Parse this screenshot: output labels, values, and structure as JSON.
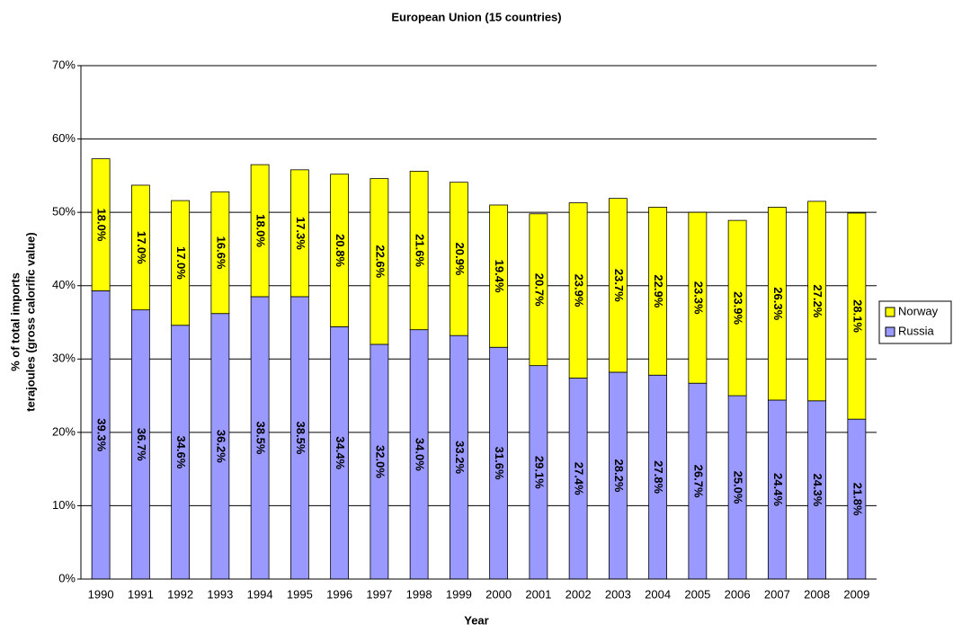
{
  "chart_data": {
    "type": "stacked_bar",
    "title": "European Union (15 countries)",
    "xlabel": "Year",
    "ylabel": [
      "% of total imports",
      "terajoules (gross calorific value)"
    ],
    "categories": [
      "1990",
      "1991",
      "1992",
      "1993",
      "1994",
      "1995",
      "1996",
      "1997",
      "1998",
      "1999",
      "2000",
      "2001",
      "2002",
      "2003",
      "2004",
      "2005",
      "2006",
      "2007",
      "2008",
      "2009"
    ],
    "series": [
      {
        "name": "Russia",
        "color": "#9999ff",
        "values": [
          39.3,
          36.7,
          34.6,
          36.2,
          38.5,
          38.5,
          34.4,
          32.0,
          34.0,
          33.2,
          31.6,
          29.1,
          27.4,
          28.2,
          27.8,
          26.7,
          25.0,
          24.4,
          24.3,
          21.8
        ],
        "value_labels": [
          "39.3%",
          "36.7%",
          "34.6%",
          "36.2%",
          "38.5%",
          "38.5%",
          "34.4%",
          "32.0%",
          "34.0%",
          "33.2%",
          "31.6%",
          "29.1%",
          "27.4%",
          "28.2%",
          "27.8%",
          "26.7%",
          "25.0%",
          "24.4%",
          "24.3%",
          "21.8%"
        ]
      },
      {
        "name": "Norway",
        "color": "#ffff00",
        "values": [
          18.0,
          17.0,
          17.0,
          16.6,
          18.0,
          17.3,
          20.8,
          22.6,
          21.6,
          20.9,
          19.4,
          20.7,
          23.9,
          23.7,
          22.9,
          23.3,
          23.9,
          26.3,
          27.2,
          28.1
        ],
        "value_labels": [
          "18.0%",
          "17.0%",
          "17.0%",
          "16.6%",
          "18.0%",
          "17.3%",
          "20.8%",
          "22.6%",
          "21.6%",
          "20.9%",
          "19.4%",
          "20.7%",
          "23.9%",
          "23.7%",
          "22.9%",
          "23.3%",
          "23.9%",
          "26.3%",
          "27.2%",
          "28.1%"
        ]
      }
    ],
    "ylim": [
      0,
      70
    ],
    "yticks": [
      {
        "value": 0,
        "label": "0%"
      },
      {
        "value": 10,
        "label": "10%"
      },
      {
        "value": 20,
        "label": "20%"
      },
      {
        "value": 30,
        "label": "30%"
      },
      {
        "value": 40,
        "label": "40%"
      },
      {
        "value": 50,
        "label": "50%"
      },
      {
        "value": 60,
        "label": "60%"
      },
      {
        "value": 70,
        "label": "70%"
      }
    ],
    "grid": true,
    "legend": "right"
  }
}
